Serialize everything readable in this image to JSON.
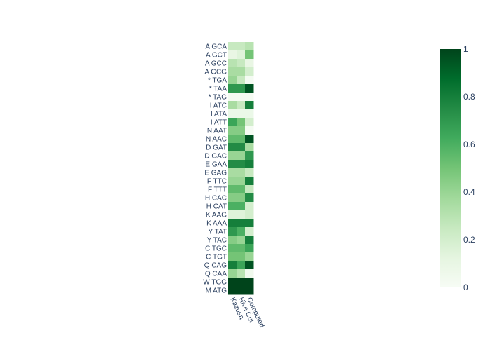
{
  "chart_data": {
    "type": "heatmap",
    "colorscale_name": "Greens",
    "x_categories": [
      "Kazusa",
      "Hive Cut",
      "Computed"
    ],
    "y_categories": [
      "A GCA",
      "A GCT",
      "A GCC",
      "A GCG",
      "* TGA",
      "* TAA",
      "* TAG",
      "I ATC",
      "I ATA",
      "I ATT",
      "N AAT",
      "N AAC",
      "D GAT",
      "D GAC",
      "E GAA",
      "E GAG",
      "F TTC",
      "F TTT",
      "H CAC",
      "H CAT",
      "K AAG",
      "K AAA",
      "Y TAT",
      "Y TAC",
      "C TGC",
      "C TGT",
      "Q CAG",
      "Q CAA",
      "W TGG",
      "M ATG"
    ],
    "z": [
      [
        0.25,
        0.25,
        0.3
      ],
      [
        0.1,
        0.15,
        0.5
      ],
      [
        0.3,
        0.25,
        0.1
      ],
      [
        0.35,
        0.35,
        0.2
      ],
      [
        0.4,
        0.25,
        0.02
      ],
      [
        0.7,
        0.7,
        0.95
      ],
      [
        0.02,
        0.02,
        0.02
      ],
      [
        0.35,
        0.25,
        0.8
      ],
      [
        0.08,
        0.08,
        0.08
      ],
      [
        0.65,
        0.5,
        0.2
      ],
      [
        0.45,
        0.45,
        0.02
      ],
      [
        0.55,
        0.55,
        0.95
      ],
      [
        0.75,
        0.75,
        0.35
      ],
      [
        0.4,
        0.4,
        0.7
      ],
      [
        0.75,
        0.75,
        0.8
      ],
      [
        0.35,
        0.35,
        0.25
      ],
      [
        0.4,
        0.4,
        0.8
      ],
      [
        0.55,
        0.55,
        0.25
      ],
      [
        0.45,
        0.45,
        0.75
      ],
      [
        0.6,
        0.6,
        0.2
      ],
      [
        0.15,
        0.15,
        0.2
      ],
      [
        0.8,
        0.8,
        0.8
      ],
      [
        0.7,
        0.6,
        0.2
      ],
      [
        0.45,
        0.4,
        0.8
      ],
      [
        0.55,
        0.55,
        0.65
      ],
      [
        0.5,
        0.5,
        0.4
      ],
      [
        0.8,
        0.65,
        0.95
      ],
      [
        0.4,
        0.3,
        0.05
      ],
      [
        1.0,
        1.0,
        1.0
      ],
      [
        1.0,
        1.0,
        1.0
      ]
    ],
    "zmin": 0,
    "zmax": 1,
    "colorbar_ticks": [
      "0",
      "0.2",
      "0.4",
      "0.6",
      "0.8",
      "1"
    ],
    "title": "",
    "xlabel": "",
    "ylabel": ""
  }
}
